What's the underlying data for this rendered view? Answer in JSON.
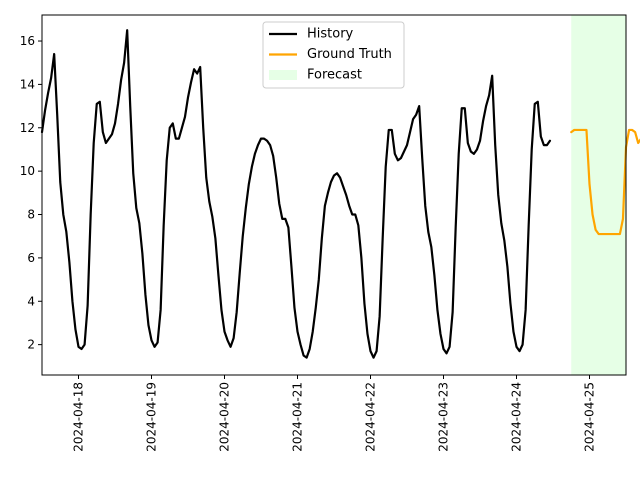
{
  "chart_data": {
    "type": "line",
    "title": "",
    "xlabel": "",
    "ylabel": "",
    "xlim": [
      "2024-04-17 12:00",
      "2024-04-25 12:00"
    ],
    "ylim": [
      0.6,
      17.2
    ],
    "grid": false,
    "legend_position": "top-center",
    "x_ticks": [
      "2024-04-18",
      "2024-04-19",
      "2024-04-20",
      "2024-04-21",
      "2024-04-22",
      "2024-04-23",
      "2024-04-24",
      "2024-04-25"
    ],
    "y_ticks": [
      2,
      4,
      6,
      8,
      10,
      12,
      14,
      16
    ],
    "forecast_region": {
      "start": "2024-04-24 18:00",
      "end": "2024-04-25 12:00",
      "color": "#e6ffe6"
    },
    "legend": [
      {
        "label": "History",
        "color": "#000000",
        "kind": "line"
      },
      {
        "label": "Ground Truth",
        "color": "#ffa500",
        "kind": "line"
      },
      {
        "label": "Forecast",
        "color": "#e6ffe6",
        "kind": "patch"
      }
    ],
    "series": [
      {
        "name": "History",
        "color": "#000000",
        "start": "2024-04-17 12:00",
        "step_hours": 1,
        "values": [
          11.8,
          12.8,
          13.6,
          14.3,
          15.4,
          12.6,
          9.5,
          8.0,
          7.2,
          5.8,
          4.0,
          2.7,
          1.9,
          1.8,
          2.0,
          3.8,
          8.0,
          11.3,
          13.1,
          13.2,
          11.8,
          11.3,
          11.5,
          11.7,
          12.2,
          13.1,
          14.2,
          15.0,
          16.5,
          13.0,
          9.9,
          8.3,
          7.6,
          6.2,
          4.3,
          2.9,
          2.2,
          1.9,
          2.1,
          3.6,
          7.5,
          10.5,
          12.0,
          12.2,
          11.5,
          11.5,
          12.0,
          12.5,
          13.4,
          14.1,
          14.7,
          14.5,
          14.8,
          12.0,
          9.7,
          8.6,
          7.9,
          6.9,
          5.2,
          3.6,
          2.6,
          2.2,
          1.9,
          2.3,
          3.5,
          5.3,
          7.0,
          8.3,
          9.4,
          10.2,
          10.8,
          11.2,
          11.5,
          11.5,
          11.4,
          11.2,
          10.7,
          9.7,
          8.5,
          7.8,
          7.8,
          7.4,
          5.6,
          3.7,
          2.6,
          2.0,
          1.5,
          1.4,
          1.8,
          2.6,
          3.7,
          5.0,
          6.9,
          8.4,
          9.0,
          9.5,
          9.8,
          9.9,
          9.7,
          9.3,
          8.9,
          8.4,
          8.0,
          8.0,
          7.5,
          6.0,
          3.9,
          2.5,
          1.7,
          1.4,
          1.7,
          3.3,
          6.9,
          10.2,
          11.9,
          11.9,
          10.8,
          10.5,
          10.6,
          10.9,
          11.2,
          11.8,
          12.4,
          12.6,
          13.0,
          10.6,
          8.4,
          7.2,
          6.5,
          5.2,
          3.6,
          2.5,
          1.8,
          1.6,
          1.9,
          3.5,
          7.4,
          10.8,
          12.9,
          12.9,
          11.3,
          10.9,
          10.8,
          11.0,
          11.4,
          12.3,
          13.0,
          13.5,
          14.4,
          11.2,
          8.9,
          7.6,
          6.8,
          5.6,
          3.9,
          2.6,
          1.9,
          1.7,
          2.0,
          3.6,
          7.5,
          11.0,
          13.1,
          13.2,
          11.6,
          11.2,
          11.2,
          11.4
        ]
      },
      {
        "name": "Ground Truth",
        "color": "#ffa500",
        "start": "2024-04-24 18:00",
        "step_hours": 1,
        "values": [
          11.8,
          11.9,
          11.9,
          11.9,
          11.9,
          11.9,
          9.4,
          8.0,
          7.3,
          7.1,
          7.1,
          7.1,
          7.1,
          7.1,
          7.1,
          7.1,
          7.1,
          7.8,
          11.1,
          11.9,
          11.9,
          11.8,
          11.3,
          11.5,
          11.8
        ]
      }
    ]
  }
}
